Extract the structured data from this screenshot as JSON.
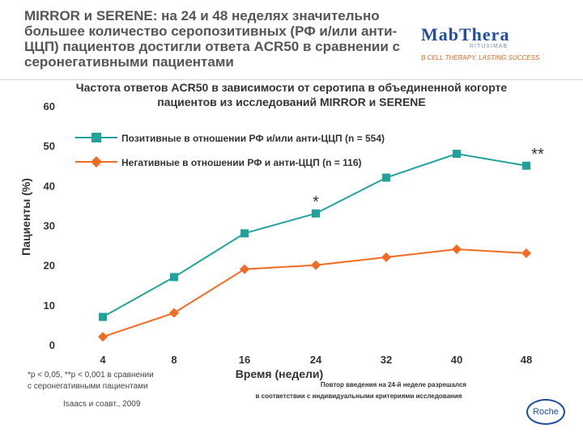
{
  "slide": {
    "title": "MIRROR и SERENE: на 24 и 48 неделях значительно большее количество серопозитивных (РФ и/или анти-ЦЦП) пациентов достигли ответа ACR50 в сравнении с серонегативными пациентами",
    "footnote_sig": "*p < 0,05, **p < 0,001 в сравнении с серонегативными пациентами",
    "citation": "Isaacs и соавт., 2009",
    "redosing_note": "Повтор введения на 24-й неделе разрешался в соответствии с индивидуальными критериями исследования"
  },
  "logo": {
    "brand": "MabThera",
    "sub": "RITUXIMAB",
    "tagline": "B CELL THERAPY. LASTING SUCCESS",
    "roche": "Roche"
  },
  "colors": {
    "seropositive": "#21a29b",
    "seronegative": "#f26b22",
    "text": "#333333"
  },
  "chart_data": {
    "type": "line",
    "title": "Частота ответов ACR50 в зависимости от серотипа в объединенной когорте пациентов из исследований MIRROR и SERENE",
    "xlabel": "Время (недели)",
    "ylabel": "Пациенты (%)",
    "x": [
      4,
      8,
      16,
      24,
      32,
      40,
      48
    ],
    "xticks": [
      "4",
      "8",
      "16",
      "24",
      "32",
      "40",
      "48"
    ],
    "ylim": [
      0,
      60
    ],
    "yticks": [
      0,
      10,
      20,
      30,
      40,
      50,
      60
    ],
    "grid": false,
    "legend_position": "top-left",
    "series": [
      {
        "name": "Позитивные в отношении РФ и/или анти-ЦЦП (n = 554)",
        "marker": "square",
        "values": [
          7,
          17,
          28,
          33,
          42,
          48,
          45
        ]
      },
      {
        "name": "Негативные в отношении РФ и анти-ЦЦП (n = 116)",
        "marker": "diamond",
        "values": [
          2,
          8,
          19,
          20,
          22,
          24,
          23
        ]
      }
    ],
    "annotations": [
      {
        "x": 24,
        "y": 33,
        "text": "*"
      },
      {
        "x": 48,
        "y": 45,
        "text": "**"
      }
    ]
  }
}
